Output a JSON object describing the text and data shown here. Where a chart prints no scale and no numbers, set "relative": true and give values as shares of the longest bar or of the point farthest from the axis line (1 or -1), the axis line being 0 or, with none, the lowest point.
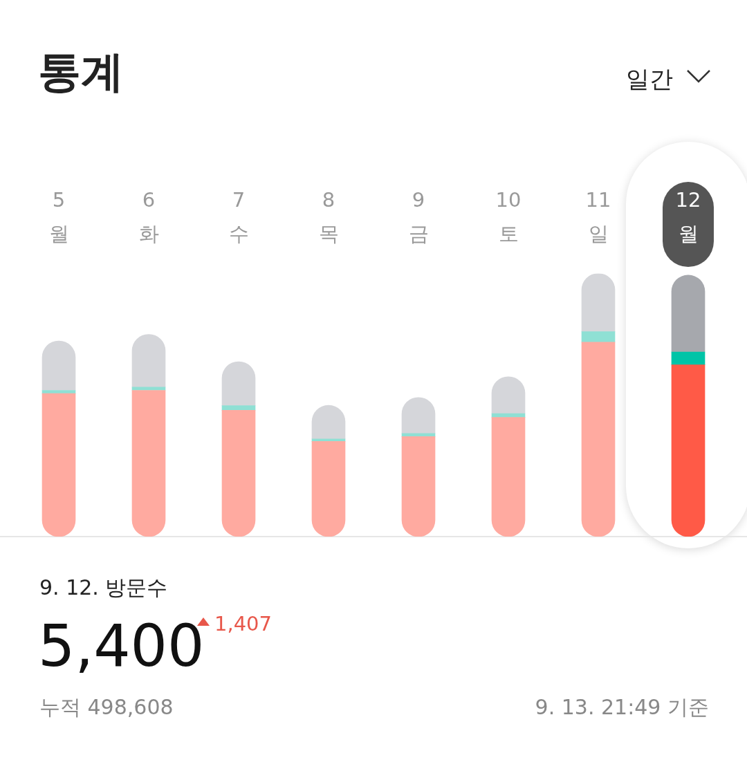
{
  "chart_data": {
    "type": "bar",
    "title": "통계",
    "stacked": true,
    "relative": true,
    "legend": false,
    "categories": [
      "5\n월",
      "6\n화",
      "7\n수",
      "8\n목",
      "9\n금",
      "10\n토",
      "11\n일",
      "12\n월"
    ],
    "series": [
      {
        "colors": [
          "#ffaaa0",
          "#ffaaa0",
          "#ffaaa0",
          "#ffaaa0",
          "#ffaaa0",
          "#ffaaa0",
          "#ffaaa0",
          "#ff5a47"
        ],
        "values": [
          0.544,
          0.556,
          0.48,
          0.362,
          0.38,
          0.453,
          0.739,
          0.653
        ]
      },
      {
        "colors": [
          "#8fe0d4",
          "#8fe0d4",
          "#8fe0d4",
          "#8fe0d4",
          "#8fe0d4",
          "#8fe0d4",
          "#8fe0d4",
          "#00c4a7"
        ],
        "values": [
          0.012,
          0.012,
          0.018,
          0.009,
          0.012,
          0.015,
          0.04,
          0.049
        ]
      },
      {
        "colors": [
          "#d5d6da",
          "#d5d6da",
          "#d5d6da",
          "#d5d6da",
          "#d5d6da",
          "#d5d6da",
          "#d5d6da",
          "#a6a8ad"
        ],
        "values": [
          0.188,
          0.201,
          0.167,
          0.128,
          0.137,
          0.14,
          0.221,
          0.292
        ]
      }
    ],
    "annotations": [
      "일간",
      "9. 12. 방문수",
      "5,400",
      "1,407",
      "누적 498,608",
      "9. 13. 21:49 기준"
    ]
  }
}
